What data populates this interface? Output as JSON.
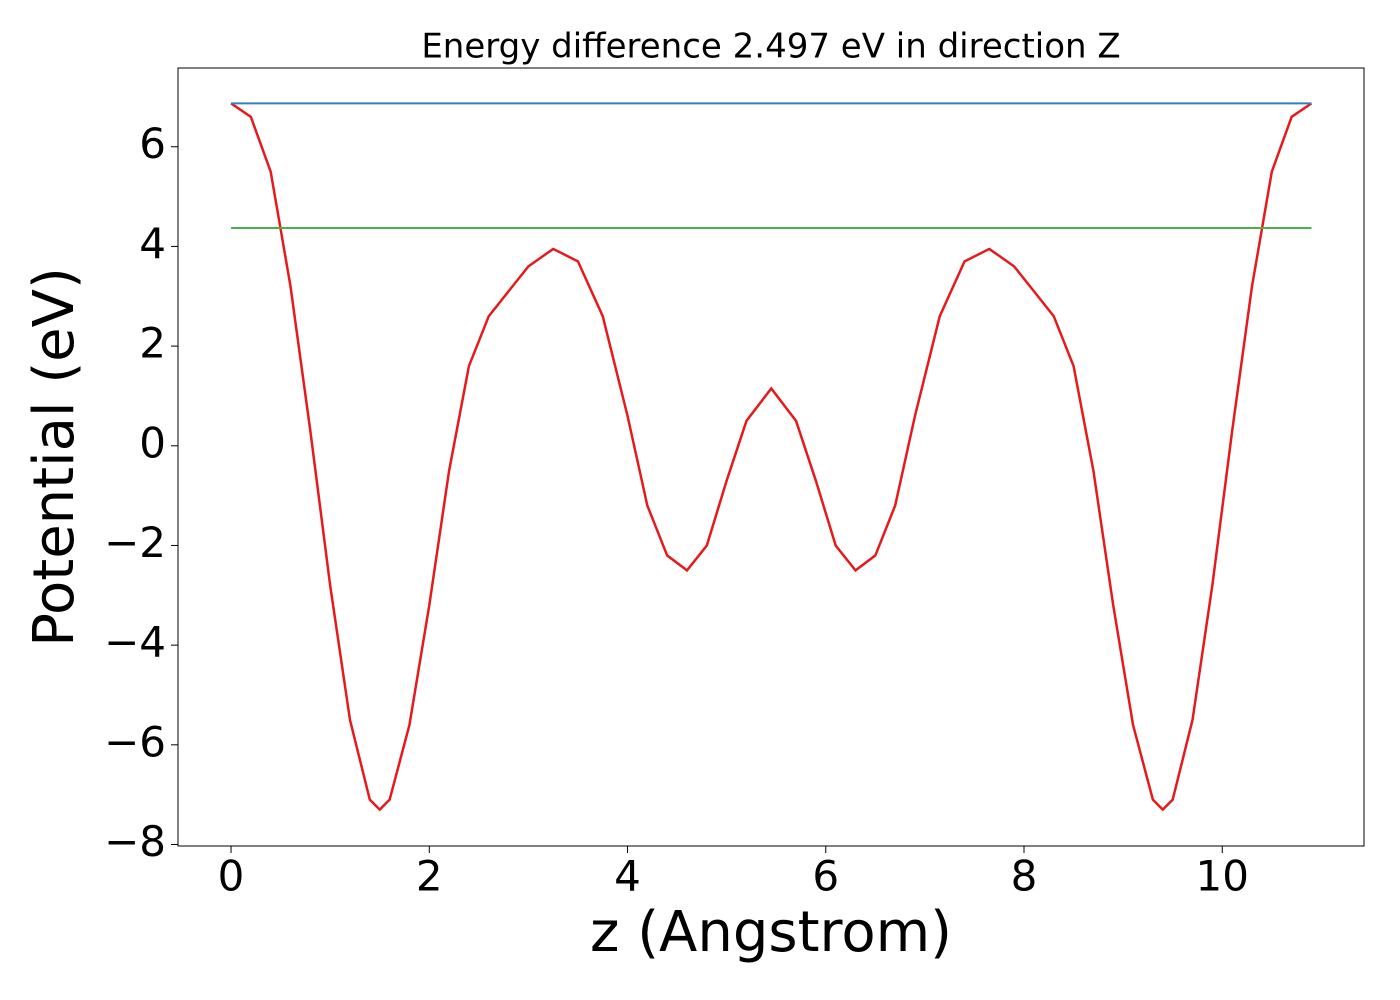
{
  "chart_data": {
    "type": "line",
    "title": "Energy difference 2.497 eV in direction Z",
    "xlabel": "z (Angstrom)",
    "ylabel": "Potential (eV)",
    "xlim": [
      -0.535,
      11.43
    ],
    "ylim": [
      -8.03,
      7.58
    ],
    "xticks": [
      0,
      2,
      4,
      6,
      8,
      10
    ],
    "yticks": [
      {
        "value": -8,
        "label": "−8"
      },
      {
        "value": -6,
        "label": "−6"
      },
      {
        "value": -4,
        "label": "−4"
      },
      {
        "value": -2,
        "label": "−2"
      },
      0,
      2,
      4,
      6
    ],
    "grid": false,
    "series": [
      {
        "color": "#e41a1c",
        "x": [
          0,
          0.2,
          0.4,
          0.6,
          0.8,
          1.0,
          1.2,
          1.4,
          1.5,
          1.6,
          1.8,
          2.0,
          2.2,
          2.4,
          2.6,
          2.8,
          3.0,
          3.25,
          3.5,
          3.75,
          4.0,
          4.2,
          4.4,
          4.6,
          4.8,
          5.0,
          5.2,
          5.45,
          5.7,
          5.9,
          6.1,
          6.3,
          6.5,
          6.7,
          6.9,
          7.15,
          7.4,
          7.65,
          7.9,
          8.1,
          8.3,
          8.5,
          8.7,
          8.9,
          9.1,
          9.3,
          9.4,
          9.5,
          9.7,
          9.9,
          10.1,
          10.3,
          10.5,
          10.7,
          10.9
        ],
        "values": [
          6.87,
          6.6,
          5.5,
          3.2,
          0.3,
          -2.8,
          -5.5,
          -7.1,
          -7.3,
          -7.1,
          -5.6,
          -3.2,
          -0.5,
          1.6,
          2.6,
          3.1,
          3.6,
          3.95,
          3.7,
          2.6,
          0.6,
          -1.2,
          -2.2,
          -2.5,
          -2.0,
          -0.7,
          0.5,
          1.15,
          0.5,
          -0.7,
          -2.0,
          -2.5,
          -2.2,
          -1.2,
          0.6,
          2.6,
          3.7,
          3.95,
          3.6,
          3.1,
          2.6,
          1.6,
          -0.5,
          -3.2,
          -5.6,
          -7.1,
          -7.3,
          -7.1,
          -5.5,
          -2.8,
          0.3,
          3.2,
          5.5,
          6.6,
          6.87
        ]
      },
      {
        "color": "#377eb8",
        "x": [
          0,
          10.9
        ],
        "values": [
          6.87,
          6.87
        ]
      },
      {
        "color": "#4daf4a",
        "x": [
          0,
          10.9
        ],
        "values": [
          4.37,
          4.37
        ]
      }
    ]
  }
}
